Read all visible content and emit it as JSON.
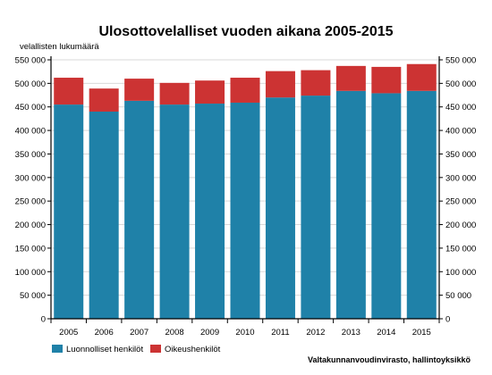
{
  "chart_data": {
    "type": "bar",
    "stacked": true,
    "title": "Ulosottovelalliset vuoden aikana 2005-2015",
    "ylabel": "velallisten lukumäärä",
    "xlabel": "",
    "categories": [
      "2005",
      "2006",
      "2007",
      "2008",
      "2009",
      "2010",
      "2011",
      "2012",
      "2013",
      "2014",
      "2015"
    ],
    "series": [
      {
        "name": "Luonnolliset henkilöt",
        "color": "#1f81a8",
        "values": [
          455000,
          440000,
          463000,
          455000,
          457000,
          459000,
          470000,
          474000,
          484000,
          479000,
          484000
        ]
      },
      {
        "name": "Oikeushenkilöt",
        "color": "#cc3333",
        "values": [
          57000,
          49000,
          47000,
          46000,
          49000,
          53000,
          56000,
          54000,
          53000,
          56000,
          57000
        ]
      }
    ],
    "ylim": [
      0,
      550000
    ],
    "yticks": [
      0,
      50000,
      100000,
      150000,
      200000,
      250000,
      300000,
      350000,
      400000,
      450000,
      500000,
      550000
    ],
    "ytick_labels": [
      "0",
      "50 000",
      "100 000",
      "150 000",
      "200 000",
      "250 000",
      "300 000",
      "350 000",
      "400 000",
      "450 000",
      "500 000",
      "550 000"
    ],
    "grid": true,
    "right_axis": true,
    "legend_position": "bottom-left",
    "source": "Valtakunnanvoudinvirasto, hallintoyksikkö"
  }
}
